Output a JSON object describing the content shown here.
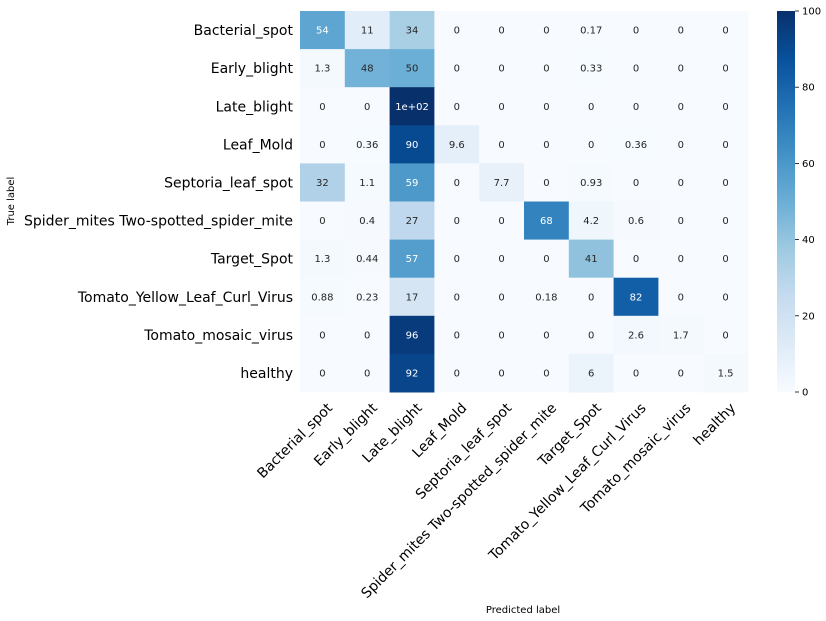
{
  "chart_data": {
    "type": "heatmap",
    "title": "",
    "xlabel": "Predicted label",
    "ylabel": "True label",
    "row_labels": [
      "Bacterial_spot",
      "Early_blight",
      "Late_blight",
      "Leaf_Mold",
      "Septoria_leaf_spot",
      "Spider_mites Two-spotted_spider_mite",
      "Target_Spot",
      "Tomato_Yellow_Leaf_Curl_Virus",
      "Tomato_mosaic_virus",
      "healthy"
    ],
    "col_labels": [
      "Bacterial_spot",
      "Early_blight",
      "Late_blight",
      "Leaf_Mold",
      "Septoria_leaf_spot",
      "Spider_mites Two-spotted_spider_mite",
      "Target_Spot",
      "Tomato_Yellow_Leaf_Curl_Virus",
      "Tomato_mosaic_virus",
      "healthy"
    ],
    "values": [
      [
        54,
        11,
        34,
        0,
        0,
        0,
        0.17,
        0,
        0,
        0
      ],
      [
        1.3,
        48,
        50,
        0,
        0,
        0,
        0.33,
        0,
        0,
        0
      ],
      [
        0,
        0,
        100,
        0,
        0,
        0,
        0,
        0,
        0,
        0
      ],
      [
        0,
        0.36,
        90,
        9.6,
        0,
        0,
        0,
        0.36,
        0,
        0
      ],
      [
        32,
        1.1,
        59,
        0,
        7.7,
        0,
        0.93,
        0,
        0,
        0
      ],
      [
        0,
        0.4,
        27,
        0,
        0,
        68,
        4.2,
        0.6,
        0,
        0
      ],
      [
        1.3,
        0.44,
        57,
        0,
        0,
        0,
        41,
        0,
        0,
        0
      ],
      [
        0.88,
        0.23,
        17,
        0,
        0,
        0.18,
        0,
        82,
        0,
        0
      ],
      [
        0,
        0,
        96,
        0,
        0,
        0,
        0,
        2.6,
        1.7,
        0
      ],
      [
        0,
        0,
        92,
        0,
        0,
        0,
        6,
        0,
        0,
        1.5
      ]
    ],
    "annotations": [
      [
        "54",
        "11",
        "34",
        "0",
        "0",
        "0",
        "0.17",
        "0",
        "0",
        "0"
      ],
      [
        "1.3",
        "48",
        "50",
        "0",
        "0",
        "0",
        "0.33",
        "0",
        "0",
        "0"
      ],
      [
        "0",
        "0",
        "1e+02",
        "0",
        "0",
        "0",
        "0",
        "0",
        "0",
        "0"
      ],
      [
        "0",
        "0.36",
        "90",
        "9.6",
        "0",
        "0",
        "0",
        "0.36",
        "0",
        "0"
      ],
      [
        "32",
        "1.1",
        "59",
        "0",
        "7.7",
        "0",
        "0.93",
        "0",
        "0",
        "0"
      ],
      [
        "0",
        "0.4",
        "27",
        "0",
        "0",
        "68",
        "4.2",
        "0.6",
        "0",
        "0"
      ],
      [
        "1.3",
        "0.44",
        "57",
        "0",
        "0",
        "0",
        "41",
        "0",
        "0",
        "0"
      ],
      [
        "0.88",
        "0.23",
        "17",
        "0",
        "0",
        "0.18",
        "0",
        "82",
        "0",
        "0"
      ],
      [
        "0",
        "0",
        "96",
        "0",
        "0",
        "0",
        "0",
        "2.6",
        "1.7",
        "0"
      ],
      [
        "0",
        "0",
        "92",
        "0",
        "0",
        "0",
        "6",
        "0",
        "0",
        "1.5"
      ]
    ],
    "colorbar": {
      "range": [
        0,
        100
      ],
      "ticks": [
        "0",
        "20",
        "40",
        "60",
        "80",
        "100"
      ],
      "colormap": "Blues"
    },
    "grid": false,
    "legend": "colorbar-right"
  }
}
